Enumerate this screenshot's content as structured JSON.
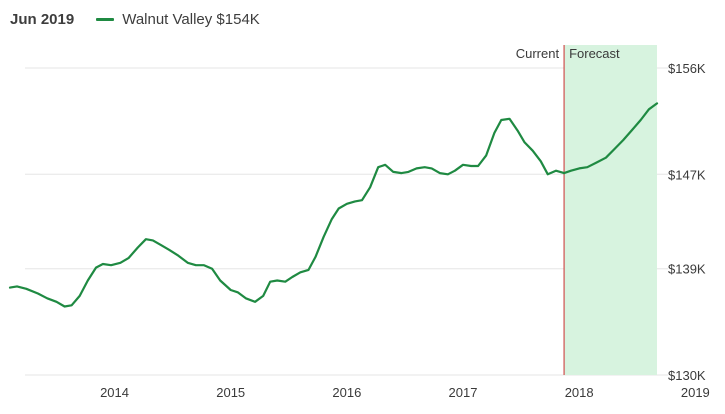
{
  "header": {
    "date": "Jun 2019",
    "legend_label": "Walnut Valley $154K"
  },
  "colors": {
    "line": "#1f8a42",
    "forecast_fill": "#d7f3df",
    "divider": "#cf5050",
    "grid": "#e6e6e6",
    "text": "#3a3a3a"
  },
  "chart_data": {
    "type": "line",
    "series": [
      {
        "name": "Walnut Valley $154K",
        "points": [
          [
            2013.1,
            137.4
          ],
          [
            2013.16,
            137.5
          ],
          [
            2013.24,
            137.3
          ],
          [
            2013.34,
            136.9
          ],
          [
            2013.42,
            136.5
          ],
          [
            2013.5,
            136.2
          ],
          [
            2013.57,
            135.8
          ],
          [
            2013.63,
            135.9
          ],
          [
            2013.7,
            136.7
          ],
          [
            2013.77,
            138.0
          ],
          [
            2013.84,
            139.1
          ],
          [
            2013.9,
            139.4
          ],
          [
            2013.97,
            139.3
          ],
          [
            2014.05,
            139.5
          ],
          [
            2014.12,
            139.9
          ],
          [
            2014.2,
            140.8
          ],
          [
            2014.27,
            141.5
          ],
          [
            2014.33,
            141.4
          ],
          [
            2014.4,
            141.0
          ],
          [
            2014.47,
            140.6
          ],
          [
            2014.55,
            140.1
          ],
          [
            2014.63,
            139.5
          ],
          [
            2014.7,
            139.3
          ],
          [
            2014.77,
            139.3
          ],
          [
            2014.84,
            139.0
          ],
          [
            2014.91,
            138.0
          ],
          [
            2015.0,
            137.2
          ],
          [
            2015.06,
            137.0
          ],
          [
            2015.13,
            136.5
          ],
          [
            2015.21,
            136.2
          ],
          [
            2015.28,
            136.7
          ],
          [
            2015.34,
            137.9
          ],
          [
            2015.4,
            138.0
          ],
          [
            2015.47,
            137.9
          ],
          [
            2015.53,
            138.3
          ],
          [
            2015.6,
            138.7
          ],
          [
            2015.67,
            138.9
          ],
          [
            2015.73,
            140.0
          ],
          [
            2015.8,
            141.7
          ],
          [
            2015.87,
            143.2
          ],
          [
            2015.93,
            144.1
          ],
          [
            2016.0,
            144.5
          ],
          [
            2016.07,
            144.7
          ],
          [
            2016.13,
            144.8
          ],
          [
            2016.2,
            145.9
          ],
          [
            2016.27,
            147.6
          ],
          [
            2016.33,
            147.8
          ],
          [
            2016.4,
            147.2
          ],
          [
            2016.47,
            147.1
          ],
          [
            2016.53,
            147.2
          ],
          [
            2016.6,
            147.5
          ],
          [
            2016.67,
            147.6
          ],
          [
            2016.73,
            147.5
          ],
          [
            2016.8,
            147.1
          ],
          [
            2016.87,
            147.0
          ],
          [
            2016.93,
            147.3
          ],
          [
            2017.0,
            147.8
          ],
          [
            2017.07,
            147.7
          ],
          [
            2017.13,
            147.7
          ],
          [
            2017.2,
            148.6
          ],
          [
            2017.27,
            150.5
          ],
          [
            2017.33,
            151.6
          ],
          [
            2017.4,
            151.7
          ],
          [
            2017.47,
            150.7
          ],
          [
            2017.53,
            149.7
          ],
          [
            2017.6,
            149.0
          ],
          [
            2017.67,
            148.1
          ],
          [
            2017.73,
            147.0
          ],
          [
            2017.8,
            147.3
          ],
          [
            2017.87,
            147.1
          ]
        ]
      },
      {
        "name": "Forecast",
        "points": [
          [
            2017.87,
            147.1
          ],
          [
            2017.93,
            147.3
          ],
          [
            2018.0,
            147.5
          ],
          [
            2018.07,
            147.6
          ],
          [
            2018.15,
            148.0
          ],
          [
            2018.23,
            148.4
          ],
          [
            2018.3,
            149.1
          ],
          [
            2018.38,
            149.9
          ],
          [
            2018.46,
            150.8
          ],
          [
            2018.53,
            151.6
          ],
          [
            2018.6,
            152.5
          ],
          [
            2018.67,
            153.0
          ]
        ]
      }
    ],
    "x_tick_labels": [
      {
        "value": 2014,
        "label": "2014"
      },
      {
        "value": 2015,
        "label": "2015"
      },
      {
        "value": 2016,
        "label": "2016"
      },
      {
        "value": 2017,
        "label": "2017"
      },
      {
        "value": 2018,
        "label": "2018"
      },
      {
        "value": 2019,
        "label": "2019"
      }
    ],
    "y_tick_labels": [
      {
        "value": 156,
        "label": "$156K"
      },
      {
        "value": 147,
        "label": "$147K"
      },
      {
        "value": 139,
        "label": "$139K"
      },
      {
        "value": 130,
        "label": "$130K"
      }
    ],
    "xlim": [
      2013.1,
      2018.67
    ],
    "ylim": [
      130,
      156
    ],
    "current_x": 2017.87,
    "annotations": {
      "current": "Current",
      "forecast": "Forecast"
    },
    "grid": true,
    "y_axis_side": "right"
  }
}
